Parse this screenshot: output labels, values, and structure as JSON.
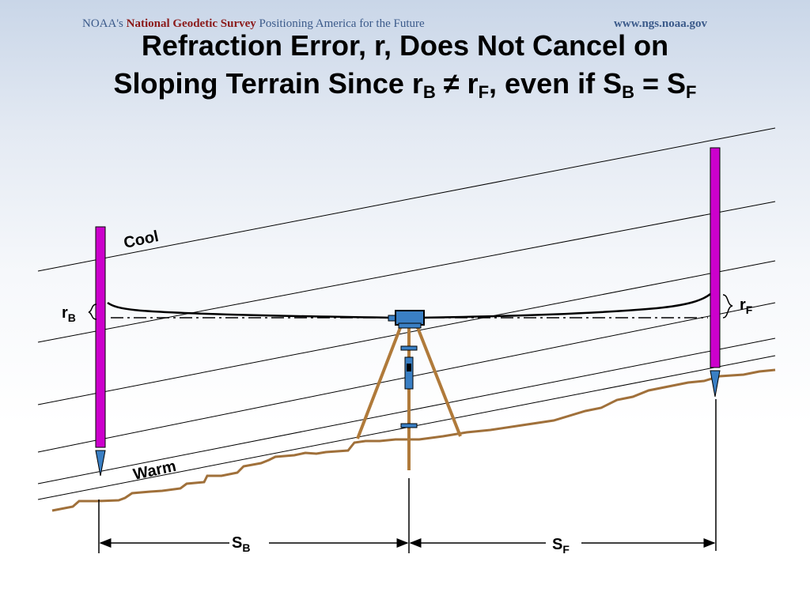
{
  "header": {
    "org_prefix": "NOAA's",
    "org_name": "National Geodetic Survey",
    "tagline": "Positioning America for the Future",
    "url": "www.ngs.noaa.gov"
  },
  "title": {
    "line1": "Refraction Error, r, Does Not Cancel on",
    "line2_a": "Sloping Terrain Since r",
    "line2_sub1": "B",
    "line2_b": " ≠ r",
    "line2_sub2": "F",
    "line2_c": ", even if S",
    "line2_sub3": "B",
    "line2_d": " = S",
    "line2_sub4": "F"
  },
  "labels": {
    "cool": "Cool",
    "warm": "Warm",
    "r": "r",
    "s": "S",
    "sub_b": "B",
    "sub_f": "F"
  },
  "colors": {
    "rod": "#cc00cc",
    "ground": "#a0703a",
    "tripod": "#b07a3a",
    "instrument": "#3a7fc4"
  }
}
